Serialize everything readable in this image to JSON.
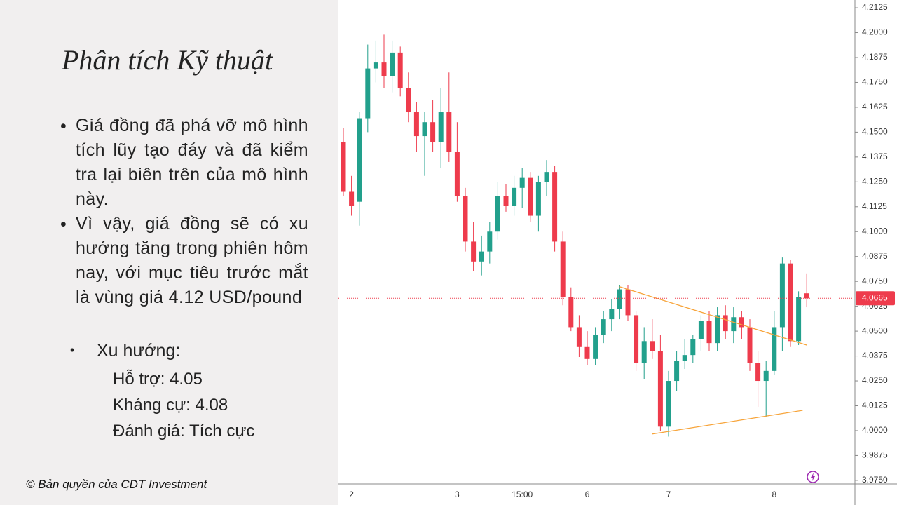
{
  "slide": {
    "title": "Phân tích Kỹ thuật",
    "bullets": [
      "Giá đồng đã phá vỡ mô hình tích lũy tạo đáy và đã kiểm tra lại biên trên của mô hình này.",
      "Vì vậy, giá đồng sẽ có xu hướng tăng trong phiên hôm nay, với mục tiêu trước mắt là vùng giá 4.12 USD/pound"
    ],
    "sub_bullet": "Xu hướng:",
    "details": [
      "Hỗ trợ: 4.05",
      "Kháng cự: 4.08",
      "Đánh giá: Tích cực"
    ],
    "footer": "© Bản quyền của CDT Investment"
  },
  "chart_data": {
    "type": "candlestick",
    "categories": [
      null,
      "2",
      null,
      null,
      null,
      null,
      null,
      null,
      null,
      null,
      null,
      null,
      null,
      null,
      "3",
      null,
      null,
      null,
      null,
      null,
      null,
      null,
      "15:00",
      null,
      null,
      null,
      null,
      null,
      null,
      null,
      "6",
      null,
      null,
      null,
      null,
      null,
      null,
      null,
      null,
      null,
      "7",
      null,
      null,
      null,
      null,
      null,
      null,
      null,
      null,
      null,
      null,
      null,
      null,
      "8",
      null,
      null,
      null,
      null
    ],
    "open": [
      4.145,
      4.12,
      4.115,
      4.157,
      4.182,
      4.185,
      4.178,
      4.19,
      4.172,
      4.16,
      4.148,
      4.155,
      4.145,
      4.16,
      4.14,
      4.118,
      4.095,
      4.085,
      4.09,
      4.1,
      4.118,
      4.113,
      4.122,
      4.127,
      4.108,
      4.125,
      4.13,
      4.095,
      4.067,
      4.052,
      4.042,
      4.036,
      4.048,
      4.056,
      4.061,
      4.071,
      4.058,
      4.034,
      4.045,
      4.04,
      4.002,
      4.025,
      4.035,
      4.038,
      4.046,
      4.055,
      4.044,
      4.058,
      4.05,
      4.057,
      4.052,
      4.034,
      4.025,
      4.03,
      4.052,
      4.084,
      4.045,
      4.069
    ],
    "high": [
      4.152,
      4.128,
      4.16,
      4.194,
      4.196,
      4.199,
      4.196,
      4.193,
      4.18,
      4.165,
      4.16,
      4.166,
      4.172,
      4.18,
      4.155,
      4.122,
      4.105,
      4.098,
      4.105,
      4.125,
      4.124,
      4.128,
      4.132,
      4.13,
      4.128,
      4.136,
      4.133,
      4.1,
      4.072,
      4.058,
      4.05,
      4.052,
      4.06,
      4.066,
      4.073,
      4.073,
      4.06,
      4.052,
      4.056,
      4.048,
      4.03,
      4.04,
      4.046,
      4.048,
      4.058,
      4.06,
      4.062,
      4.063,
      4.062,
      4.06,
      4.056,
      4.04,
      4.035,
      4.06,
      4.087,
      4.086,
      4.07,
      4.079
    ],
    "low": [
      4.118,
      4.108,
      4.103,
      4.15,
      4.175,
      4.172,
      4.17,
      4.168,
      4.155,
      4.14,
      4.128,
      4.14,
      4.132,
      4.135,
      4.115,
      4.09,
      4.08,
      4.078,
      4.084,
      4.096,
      4.11,
      4.108,
      4.112,
      4.105,
      4.1,
      4.118,
      4.09,
      4.063,
      4.05,
      4.037,
      4.033,
      4.033,
      4.044,
      4.05,
      4.056,
      4.055,
      4.03,
      4.026,
      4.036,
      4.0,
      3.997,
      4.02,
      4.031,
      4.034,
      4.04,
      4.04,
      4.04,
      4.046,
      4.044,
      4.046,
      4.03,
      4.012,
      4.007,
      4.028,
      4.04,
      4.042,
      4.043,
      4.062
    ],
    "close": [
      4.12,
      4.113,
      4.157,
      4.182,
      4.185,
      4.178,
      4.19,
      4.172,
      4.16,
      4.148,
      4.155,
      4.145,
      4.16,
      4.14,
      4.118,
      4.095,
      4.085,
      4.09,
      4.1,
      4.118,
      4.113,
      4.122,
      4.127,
      4.108,
      4.125,
      4.13,
      4.095,
      4.067,
      4.052,
      4.042,
      4.036,
      4.048,
      4.056,
      4.061,
      4.071,
      4.058,
      4.034,
      4.045,
      4.04,
      4.002,
      4.025,
      4.035,
      4.038,
      4.046,
      4.055,
      4.044,
      4.058,
      4.05,
      4.057,
      4.052,
      4.034,
      4.025,
      4.03,
      4.052,
      4.084,
      4.045,
      4.067,
      4.0665
    ],
    "up_color": "#22a08c",
    "down_color": "#ee3b4c",
    "ylim": [
      3.9732,
      4.2164
    ],
    "yticks": [
      4.2125,
      {
        "value": 4.2,
        "label": "4.2000"
      },
      4.1875,
      {
        "value": 4.175,
        "label": "4.1750"
      },
      4.1625,
      {
        "value": 4.15,
        "label": "4.1500"
      },
      4.1375,
      {
        "value": 4.125,
        "label": "4.1250"
      },
      4.1125,
      {
        "value": 4.1,
        "label": "4.1000"
      },
      4.0875,
      {
        "value": 4.075,
        "label": "4.0750"
      },
      4.0625,
      {
        "value": 4.05,
        "label": "4.0500"
      },
      4.0375,
      {
        "value": 4.025,
        "label": "4.0250"
      },
      4.0125,
      {
        "value": 4,
        "label": "4.0000"
      },
      3.9875,
      {
        "value": 3.975,
        "label": "3.9750"
      }
    ],
    "last_price": 4.0665,
    "last_price_color": "#ee3b4c",
    "trendlines": [
      {
        "color": "#f7a43a",
        "x": [
          34,
          57
        ],
        "y": [
          4.0723,
          4.043
        ]
      },
      {
        "color": "#f7a43a",
        "x": [
          38,
          56.5
        ],
        "y": [
          3.9983,
          4.0102
        ]
      }
    ]
  }
}
